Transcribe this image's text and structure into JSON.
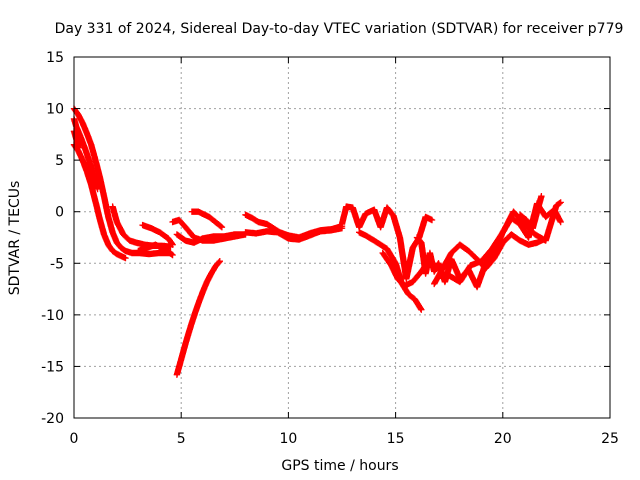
{
  "chart_data": {
    "type": "scatter",
    "title": "Day 331 of 2024, Sidereal Day-to-day VTEC variation (SDTVAR) for receiver p779",
    "xlabel": "GPS time / hours",
    "ylabel": "SDTVAR / TECUs",
    "xlim": [
      0,
      25
    ],
    "ylim": [
      -20,
      15
    ],
    "xticks": [
      0,
      5,
      10,
      15,
      20,
      25
    ],
    "yticks": [
      -20,
      -15,
      -10,
      -5,
      0,
      5,
      10,
      15
    ],
    "xtick_labels": [
      "0",
      "5",
      "10",
      "15",
      "20",
      "25"
    ],
    "ytick_labels": [
      "-20",
      "-15",
      "-10",
      "-5",
      "0",
      "5",
      "10",
      "15"
    ],
    "grid": true,
    "marker": "+",
    "series": [
      {
        "name": "p779",
        "color": "#ff0000",
        "tracks": [
          {
            "x": [
              0.0,
              0.2,
              0.4,
              0.6,
              0.8,
              1.0,
              1.2,
              1.4,
              1.6,
              1.8,
              2.0,
              2.2,
              2.4,
              2.7,
              3.0,
              3.5,
              4.0,
              4.5
            ],
            "y": [
              10.0,
              9.4,
              8.6,
              7.6,
              6.5,
              5.0,
              3.4,
              1.5,
              -0.5,
              -2.0,
              -3.0,
              -3.5,
              -3.8,
              -4.0,
              -4.0,
              -4.1,
              -4.0,
              -4.0
            ]
          },
          {
            "x": [
              0.0,
              0.2,
              0.4,
              0.6,
              0.8,
              1.0,
              1.2,
              1.4,
              1.6,
              1.8,
              2.0,
              2.2,
              2.4
            ],
            "y": [
              6.5,
              5.9,
              5.0,
              3.9,
              2.6,
              1.0,
              -0.7,
              -2.2,
              -3.2,
              -3.8,
              -4.1,
              -4.3,
              -4.5
            ]
          },
          {
            "x": [
              0.0,
              0.1,
              0.3,
              0.5,
              0.7,
              0.9,
              1.1
            ],
            "y": [
              9.0,
              8.3,
              7.3,
              6.2,
              5.0,
              3.6,
              2.2
            ]
          },
          {
            "x": [
              0.0,
              0.1,
              0.2
            ],
            "y": [
              7.8,
              7.1,
              6.2
            ]
          },
          {
            "x": [
              1.8,
              2.0,
              2.3,
              2.6,
              2.9,
              3.3,
              3.7,
              4.1,
              4.5
            ],
            "y": [
              0.5,
              -1.0,
              -2.2,
              -2.8,
              -3.0,
              -3.2,
              -3.3,
              -3.3,
              -3.4
            ]
          },
          {
            "x": [
              3.2,
              3.6,
              4.0,
              4.4,
              4.6
            ],
            "y": [
              -1.3,
              -1.6,
              -2.0,
              -2.6,
              -3.2
            ]
          },
          {
            "x": [
              3.0,
              3.4,
              3.8,
              4.2,
              4.6
            ],
            "y": [
              -3.8,
              -3.5,
              -3.2,
              -3.6,
              -4.2
            ]
          },
          {
            "x": [
              4.8,
              5.0,
              5.2,
              5.4,
              5.6,
              5.8,
              6.0,
              6.2,
              6.4,
              6.6,
              6.8
            ],
            "y": [
              -15.8,
              -14.3,
              -12.8,
              -11.4,
              -10.1,
              -8.9,
              -7.8,
              -6.8,
              -6.0,
              -5.3,
              -4.8
            ]
          },
          {
            "x": [
              4.8,
              5.2,
              5.6,
              6.0,
              6.5,
              7.0,
              7.5,
              8.0
            ],
            "y": [
              -2.2,
              -2.8,
              -3.0,
              -2.6,
              -2.4,
              -2.4,
              -2.2,
              -2.2
            ]
          },
          {
            "x": [
              4.6,
              4.9,
              5.2,
              5.6,
              6.0,
              6.5,
              7.0,
              7.5,
              8.0
            ],
            "y": [
              -1.0,
              -0.8,
              -1.5,
              -2.5,
              -2.8,
              -2.8,
              -2.6,
              -2.4,
              -2.2
            ]
          },
          {
            "x": [
              5.5,
              5.8,
              6.0,
              6.3,
              6.6,
              6.9
            ],
            "y": [
              0.0,
              0.0,
              -0.2,
              -0.5,
              -1.0,
              -1.5
            ]
          },
          {
            "x": [
              8.0,
              8.3,
              8.6,
              9.0,
              9.3,
              9.6,
              10.0,
              10.5,
              11.0,
              11.5,
              12.0,
              12.5
            ],
            "y": [
              -0.3,
              -0.6,
              -1.0,
              -1.2,
              -1.6,
              -2.0,
              -2.3,
              -2.5,
              -2.1,
              -1.8,
              -1.7,
              -1.4
            ]
          },
          {
            "x": [
              8.0,
              8.5,
              9.0,
              9.5,
              10.0,
              10.5,
              11.0,
              11.5,
              12.0,
              12.5
            ],
            "y": [
              -2.0,
              -2.1,
              -1.9,
              -2.0,
              -2.6,
              -2.7,
              -2.3,
              -1.9,
              -1.8,
              -1.6
            ]
          },
          {
            "x": [
              12.5,
              12.7,
              13.0,
              13.3,
              13.6,
              14.0,
              14.3,
              14.6,
              14.9,
              15.2,
              15.5,
              15.8,
              16.1,
              16.4,
              16.7
            ],
            "y": [
              -1.2,
              0.5,
              0.4,
              -1.5,
              -0.2,
              0.2,
              -1.5,
              0.4,
              -0.4,
              -2.5,
              -6.5,
              -3.5,
              -2.5,
              -0.5,
              -0.8
            ]
          },
          {
            "x": [
              13.3,
              13.6,
              14.0,
              14.3,
              14.6,
              15.0,
              15.3,
              15.6,
              15.9,
              16.2
            ],
            "y": [
              -2.0,
              -2.3,
              -2.8,
              -3.2,
              -3.6,
              -5.0,
              -7.0,
              -8.0,
              -8.5,
              -9.5
            ]
          },
          {
            "x": [
              14.4,
              14.8,
              15.1,
              15.4,
              15.8,
              16.2,
              16.6
            ],
            "y": [
              -4.0,
              -5.2,
              -6.5,
              -7.2,
              -6.8,
              -5.8,
              -4.6
            ]
          },
          {
            "x": [
              16.0,
              16.2,
              16.4,
              16.6,
              16.8,
              17.0,
              17.3,
              17.6,
              18.0,
              18.4,
              18.8,
              19.2,
              19.6,
              20.0,
              20.4,
              20.8,
              21.2,
              21.6,
              22.0,
              22.4,
              22.7
            ],
            "y": [
              -2.5,
              -3.0,
              -6.0,
              -4.0,
              -5.8,
              -5.0,
              -6.8,
              -4.6,
              -6.5,
              -5.6,
              -7.3,
              -5.0,
              -4.0,
              -2.0,
              -0.6,
              -1.2,
              -2.5,
              0.8,
              -0.5,
              0.2,
              -1.0
            ]
          },
          {
            "x": [
              16.8,
              17.2,
              17.6,
              18.0,
              18.4,
              18.8,
              19.2,
              19.6,
              20.0,
              20.4,
              20.8,
              21.2,
              21.6,
              22.0
            ],
            "y": [
              -7.0,
              -5.5,
              -4.0,
              -3.2,
              -3.8,
              -4.6,
              -5.5,
              -4.5,
              -3.0,
              -2.2,
              -2.8,
              -3.2,
              -3.0,
              -2.6
            ]
          },
          {
            "x": [
              17.5,
              18.0,
              18.5,
              19.0,
              19.5,
              20.0,
              20.5,
              21.0,
              21.5,
              22.0,
              22.5,
              22.7
            ],
            "y": [
              -6.2,
              -6.8,
              -5.2,
              -4.8,
              -3.6,
              -2.0,
              0.0,
              -1.2,
              -2.2,
              -2.8,
              0.6,
              0.9
            ]
          },
          {
            "x": [
              20.8,
              21.1,
              21.4,
              21.6,
              21.8
            ],
            "y": [
              -0.3,
              -0.8,
              -1.6,
              0.0,
              1.5
            ]
          }
        ]
      }
    ]
  }
}
